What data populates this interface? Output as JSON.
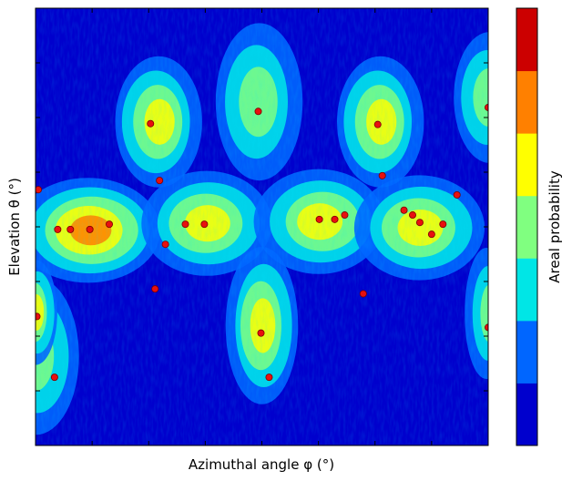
{
  "chart_data": {
    "type": "heatmap",
    "title": "",
    "xlabel": "Azimuthal angle φ (°)",
    "ylabel": "Elevation θ (°)",
    "colorbar_label": "Areal probability",
    "x_range": [
      0,
      1
    ],
    "y_range": [
      0,
      1
    ],
    "x_tick_count": 8,
    "y_tick_count": 8,
    "tick_labels_shown": false,
    "grid": false,
    "colorbar_levels": 7,
    "colormap": [
      "#0000cd",
      "#0066ff",
      "#00e6e6",
      "#80ff80",
      "#ffff00",
      "#ff8000",
      "#cc0000"
    ],
    "density_hotspots": [
      {
        "x": 0.0,
        "y": 0.2,
        "width": 0.06,
        "height": 0.12,
        "peak": 3
      },
      {
        "x": 0.12,
        "y": 0.49,
        "width": 0.1,
        "height": 0.08,
        "peak": 5
      },
      {
        "x": 0.27,
        "y": 0.74,
        "width": 0.06,
        "height": 0.1,
        "peak": 4
      },
      {
        "x": 0.38,
        "y": 0.51,
        "width": 0.09,
        "height": 0.08,
        "peak": 4
      },
      {
        "x": 0.49,
        "y": 0.79,
        "width": 0.06,
        "height": 0.12,
        "peak": 3
      },
      {
        "x": 0.5,
        "y": 0.27,
        "width": 0.05,
        "height": 0.12,
        "peak": 4
      },
      {
        "x": 0.63,
        "y": 0.51,
        "width": 0.09,
        "height": 0.08,
        "peak": 4
      },
      {
        "x": 0.76,
        "y": 0.74,
        "width": 0.06,
        "height": 0.1,
        "peak": 4
      },
      {
        "x": 0.85,
        "y": 0.5,
        "width": 0.09,
        "height": 0.08,
        "peak": 4
      },
      {
        "x": 1.0,
        "y": 0.8,
        "width": 0.05,
        "height": 0.1,
        "peak": 3
      },
      {
        "x": 0.0,
        "y": 0.3,
        "width": 0.03,
        "height": 0.08,
        "peak": 4
      },
      {
        "x": 1.0,
        "y": 0.3,
        "width": 0.03,
        "height": 0.1,
        "peak": 3
      }
    ],
    "points": [
      {
        "x": 0.254,
        "y": 0.736
      },
      {
        "x": 0.492,
        "y": 0.764
      },
      {
        "x": 0.756,
        "y": 0.734
      },
      {
        "x": 1.0,
        "y": 0.773
      },
      {
        "x": 0.274,
        "y": 0.606
      },
      {
        "x": 0.766,
        "y": 0.617
      },
      {
        "x": 0.006,
        "y": 0.585
      },
      {
        "x": 0.931,
        "y": 0.573
      },
      {
        "x": 0.814,
        "y": 0.538
      },
      {
        "x": 0.833,
        "y": 0.527
      },
      {
        "x": 0.849,
        "y": 0.51
      },
      {
        "x": 0.875,
        "y": 0.483
      },
      {
        "x": 0.9,
        "y": 0.506
      },
      {
        "x": 0.049,
        "y": 0.494
      },
      {
        "x": 0.077,
        "y": 0.494
      },
      {
        "x": 0.12,
        "y": 0.494
      },
      {
        "x": 0.163,
        "y": 0.506
      },
      {
        "x": 0.331,
        "y": 0.506
      },
      {
        "x": 0.373,
        "y": 0.506
      },
      {
        "x": 0.627,
        "y": 0.517
      },
      {
        "x": 0.661,
        "y": 0.517
      },
      {
        "x": 0.683,
        "y": 0.527
      },
      {
        "x": 0.287,
        "y": 0.46
      },
      {
        "x": 0.264,
        "y": 0.358
      },
      {
        "x": 0.724,
        "y": 0.347
      },
      {
        "x": 0.003,
        "y": 0.295
      },
      {
        "x": 1.0,
        "y": 0.27
      },
      {
        "x": 0.498,
        "y": 0.257
      },
      {
        "x": 0.042,
        "y": 0.156
      },
      {
        "x": 0.516,
        "y": 0.156
      }
    ]
  }
}
